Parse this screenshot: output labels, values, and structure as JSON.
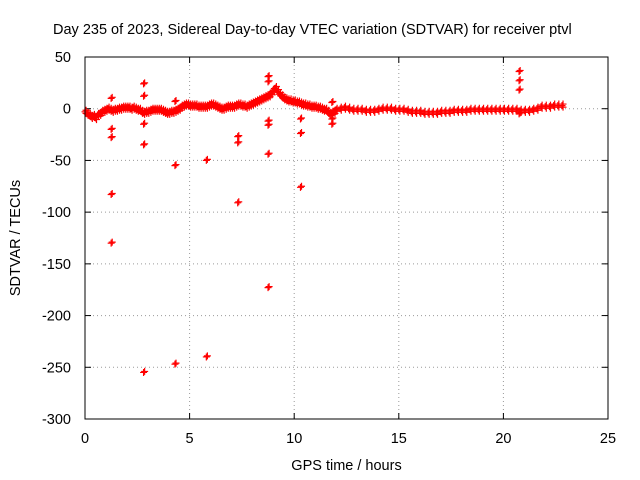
{
  "chart_data": {
    "type": "scatter",
    "title": "Day 235 of 2023, Sidereal Day-to-day VTEC variation (SDTVAR) for receiver ptvl",
    "xlabel": "GPS time / hours",
    "ylabel": "SDTVAR / TECUs",
    "xlim": [
      0,
      25
    ],
    "ylim": [
      -300,
      50
    ],
    "xticks": [
      0,
      5,
      10,
      15,
      20,
      25
    ],
    "yticks": [
      50,
      0,
      -50,
      -100,
      -150,
      -200,
      -250,
      -300
    ],
    "grid": true,
    "marker": "+",
    "color": "#ff0000",
    "series": [
      {
        "name": "SDTVAR",
        "band": [
          [
            0.0,
            -3
          ],
          [
            0.1,
            -5
          ],
          [
            0.2,
            -6
          ],
          [
            0.3,
            -8
          ],
          [
            0.4,
            -7
          ],
          [
            0.5,
            -9
          ],
          [
            0.6,
            -6
          ],
          [
            0.7,
            -5
          ],
          [
            0.8,
            -3
          ],
          [
            0.9,
            -2
          ],
          [
            1.0,
            -1
          ],
          [
            1.1,
            0
          ],
          [
            1.2,
            -1
          ],
          [
            1.3,
            -2
          ],
          [
            1.4,
            -1
          ],
          [
            1.5,
            -1
          ],
          [
            1.6,
            0
          ],
          [
            1.7,
            0
          ],
          [
            1.8,
            1
          ],
          [
            1.9,
            1
          ],
          [
            2.0,
            1
          ],
          [
            2.1,
            1
          ],
          [
            2.2,
            0
          ],
          [
            2.3,
            1
          ],
          [
            2.4,
            0
          ],
          [
            2.5,
            -1
          ],
          [
            2.6,
            -1
          ],
          [
            2.7,
            -3
          ],
          [
            2.8,
            -4
          ],
          [
            2.9,
            -3
          ],
          [
            3.0,
            -3
          ],
          [
            3.1,
            -2
          ],
          [
            3.2,
            -1
          ],
          [
            3.3,
            -1
          ],
          [
            3.4,
            -1
          ],
          [
            3.5,
            -1
          ],
          [
            3.6,
            -1
          ],
          [
            3.7,
            -2
          ],
          [
            3.8,
            -3
          ],
          [
            3.9,
            -4
          ],
          [
            4.0,
            -4
          ],
          [
            4.1,
            -3
          ],
          [
            4.2,
            -3
          ],
          [
            4.3,
            -2
          ],
          [
            4.4,
            -1
          ],
          [
            4.5,
            0
          ],
          [
            4.6,
            2
          ],
          [
            4.7,
            3
          ],
          [
            4.8,
            4
          ],
          [
            4.9,
            4
          ],
          [
            5.0,
            3
          ],
          [
            5.1,
            3
          ],
          [
            5.2,
            3
          ],
          [
            5.3,
            3
          ],
          [
            5.4,
            2
          ],
          [
            5.5,
            2
          ],
          [
            5.6,
            2
          ],
          [
            5.7,
            2
          ],
          [
            5.8,
            2
          ],
          [
            5.9,
            3
          ],
          [
            6.0,
            4
          ],
          [
            6.1,
            4
          ],
          [
            6.2,
            3
          ],
          [
            6.3,
            2
          ],
          [
            6.4,
            1
          ],
          [
            6.5,
            0
          ],
          [
            6.6,
            0
          ],
          [
            6.7,
            1
          ],
          [
            6.8,
            2
          ],
          [
            6.9,
            2
          ],
          [
            7.0,
            2
          ],
          [
            7.1,
            2
          ],
          [
            7.2,
            3
          ],
          [
            7.3,
            4
          ],
          [
            7.4,
            4
          ],
          [
            7.5,
            3
          ],
          [
            7.6,
            3
          ],
          [
            7.7,
            2
          ],
          [
            7.8,
            3
          ],
          [
            7.9,
            4
          ],
          [
            8.0,
            5
          ],
          [
            8.1,
            6
          ],
          [
            8.2,
            7
          ],
          [
            8.3,
            8
          ],
          [
            8.4,
            9
          ],
          [
            8.5,
            10
          ],
          [
            8.6,
            11
          ],
          [
            8.7,
            12
          ],
          [
            8.8,
            13
          ],
          [
            8.9,
            15
          ],
          [
            9.0,
            18
          ],
          [
            9.1,
            20
          ],
          [
            9.2,
            17
          ],
          [
            9.3,
            14
          ],
          [
            9.4,
            12
          ],
          [
            9.5,
            10
          ],
          [
            9.6,
            9
          ],
          [
            9.7,
            8
          ],
          [
            9.8,
            8
          ],
          [
            9.9,
            7
          ],
          [
            10.0,
            7
          ],
          [
            10.1,
            6
          ],
          [
            10.2,
            6
          ],
          [
            10.3,
            5
          ],
          [
            10.4,
            4
          ],
          [
            10.5,
            4
          ],
          [
            10.6,
            3
          ],
          [
            10.7,
            3
          ],
          [
            10.8,
            2
          ],
          [
            10.9,
            2
          ],
          [
            11.0,
            2
          ],
          [
            11.1,
            1
          ],
          [
            11.2,
            1
          ],
          [
            11.3,
            0
          ],
          [
            11.4,
            -1
          ],
          [
            11.5,
            -1
          ],
          [
            11.6,
            -3
          ],
          [
            11.7,
            -5
          ],
          [
            11.8,
            -4
          ],
          [
            11.9,
            -3
          ],
          [
            12.0,
            -1
          ],
          [
            12.2,
            0
          ],
          [
            12.4,
            1
          ],
          [
            12.6,
            0
          ],
          [
            12.8,
            -1
          ],
          [
            13.0,
            -1
          ],
          [
            13.2,
            -1
          ],
          [
            13.4,
            -2
          ],
          [
            13.6,
            -2
          ],
          [
            13.8,
            -2
          ],
          [
            14.0,
            -1
          ],
          [
            14.2,
            0
          ],
          [
            14.4,
            0
          ],
          [
            14.6,
            0
          ],
          [
            14.8,
            -1
          ],
          [
            15.0,
            -1
          ],
          [
            15.2,
            -1
          ],
          [
            15.4,
            -2
          ],
          [
            15.6,
            -3
          ],
          [
            15.8,
            -3
          ],
          [
            16.0,
            -3
          ],
          [
            16.2,
            -4
          ],
          [
            16.4,
            -4
          ],
          [
            16.6,
            -4
          ],
          [
            16.8,
            -4
          ],
          [
            17.0,
            -3
          ],
          [
            17.2,
            -3
          ],
          [
            17.4,
            -3
          ],
          [
            17.6,
            -2
          ],
          [
            17.8,
            -2
          ],
          [
            18.0,
            -2
          ],
          [
            18.2,
            -2
          ],
          [
            18.4,
            -1
          ],
          [
            18.6,
            -1
          ],
          [
            18.8,
            -1
          ],
          [
            19.0,
            -1
          ],
          [
            19.2,
            -1
          ],
          [
            19.4,
            -1
          ],
          [
            19.6,
            -1
          ],
          [
            19.8,
            -1
          ],
          [
            20.0,
            -1
          ],
          [
            20.2,
            -1
          ],
          [
            20.4,
            -1
          ],
          [
            20.6,
            -1
          ],
          [
            20.8,
            -2
          ],
          [
            21.0,
            -2
          ],
          [
            21.2,
            -2
          ],
          [
            21.4,
            -1
          ],
          [
            21.6,
            0
          ],
          [
            21.8,
            2
          ],
          [
            22.0,
            2
          ],
          [
            22.2,
            2
          ],
          [
            22.4,
            3
          ],
          [
            22.6,
            3
          ],
          [
            22.8,
            3
          ]
        ],
        "outliers": [
          [
            1.25,
            10
          ],
          [
            1.25,
            -20
          ],
          [
            1.25,
            -28
          ],
          [
            1.25,
            -83
          ],
          [
            1.25,
            -130
          ],
          [
            2.8,
            24
          ],
          [
            2.8,
            12
          ],
          [
            2.8,
            -15
          ],
          [
            2.8,
            -35
          ],
          [
            2.8,
            -255
          ],
          [
            4.3,
            7
          ],
          [
            4.3,
            -55
          ],
          [
            4.3,
            -247
          ],
          [
            5.8,
            -50
          ],
          [
            5.8,
            -240
          ],
          [
            7.3,
            -27
          ],
          [
            7.3,
            -33
          ],
          [
            7.3,
            -91
          ],
          [
            8.75,
            31
          ],
          [
            8.75,
            26
          ],
          [
            8.75,
            -12
          ],
          [
            8.75,
            -16
          ],
          [
            8.75,
            -44
          ],
          [
            8.75,
            -173
          ],
          [
            10.3,
            -10
          ],
          [
            10.3,
            -24
          ],
          [
            10.3,
            -76
          ],
          [
            11.8,
            6
          ],
          [
            11.8,
            -10
          ],
          [
            11.8,
            -15
          ],
          [
            20.75,
            36
          ],
          [
            20.75,
            27
          ],
          [
            20.75,
            18
          ],
          [
            20.75,
            -5
          ]
        ]
      }
    ]
  }
}
